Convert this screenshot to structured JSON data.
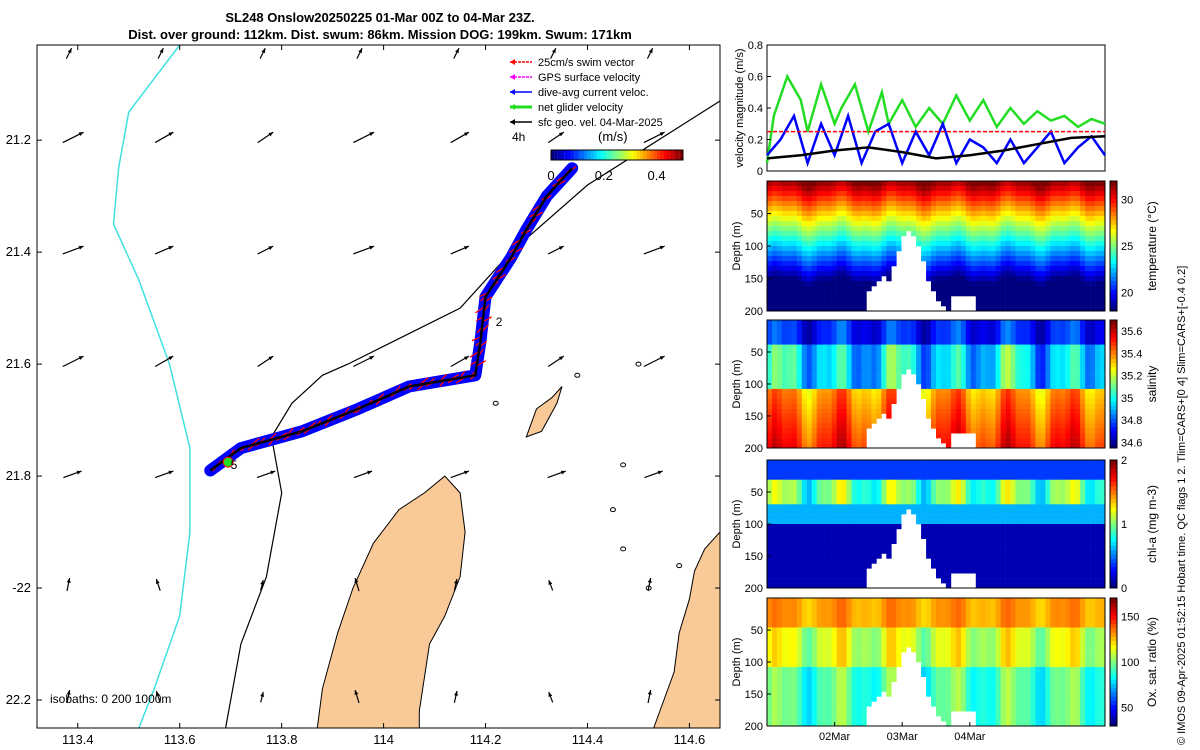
{
  "title_line1": "SL248 Onslow20250225 01-Mar 00Z to 04-Mar 23Z.",
  "title_line2": "Dist. over ground: 112km. Dist. swum: 86km. Mission DOG: 199km. Swum: 171km",
  "side_note": "© IMOS 09-Apr-2025 01:52:15 Hobart time. QC flags 1  2. Tlim=CARS+[0 4] Slim=CARS+[-0.4 0.2]",
  "colors": {
    "land": "#f9c998",
    "isobath0": "#40e0e0",
    "isobath": "#000000",
    "swim": "#ff0000",
    "gps": "#ff00ff",
    "dive": "#0000ff",
    "net": "#22dd22",
    "track": "#000000"
  },
  "chart_data": [
    {
      "type": "map",
      "name": "track-map",
      "xlim": [
        113.32,
        114.66
      ],
      "ylim": [
        -22.25,
        -21.03
      ],
      "x_ticks": [
        113.4,
        113.6,
        113.8,
        114,
        114.2,
        114.4,
        114.6
      ],
      "x_tick_labels": [
        "113.4",
        "113.6",
        "113.8",
        "114",
        "114.2",
        "114.4",
        "114.6"
      ],
      "y_ticks": [
        -21.2,
        -21.4,
        -21.6,
        -21.8,
        -22,
        -22.2
      ],
      "y_tick_labels": [
        "21.2",
        "21.4",
        "21.6",
        "21.8",
        "-22",
        "22.2"
      ],
      "legend": [
        "25cm/s swim vector",
        "GPS surface velocity",
        "dive-avg current veloc.",
        "net glider velocity",
        "sfc geo. vel. 04-Mar-2025"
      ],
      "legend_placement": "top-right",
      "interval_label": "4h",
      "colorbar_label": "(m/s)",
      "colorbar_ticks": [
        "0",
        "0.2",
        "0.4"
      ],
      "colorbar_range": [
        0,
        0.5
      ],
      "isobath_label": "isobaths: 0   200  1000m",
      "annotations": [
        {
          "text": "2",
          "lon": 114.22,
          "lat": -21.525
        },
        {
          "text": "5",
          "lon": 113.7,
          "lat": -21.78
        }
      ],
      "track": [
        [
          114.37,
          -21.25
        ],
        [
          114.32,
          -21.3
        ],
        [
          114.28,
          -21.36
        ],
        [
          114.25,
          -21.41
        ],
        [
          114.2,
          -21.48
        ],
        [
          114.19,
          -21.56
        ],
        [
          114.18,
          -21.62
        ],
        [
          114.05,
          -21.64
        ],
        [
          113.95,
          -21.68
        ],
        [
          113.84,
          -21.72
        ],
        [
          113.72,
          -21.75
        ],
        [
          113.66,
          -21.79
        ]
      ],
      "isobath_200m": [
        [
          114.66,
          -21.13
        ],
        [
          114.4,
          -21.28
        ],
        [
          114.25,
          -21.4
        ],
        [
          114.15,
          -21.5
        ],
        [
          113.93,
          -21.6
        ],
        [
          113.88,
          -21.62
        ],
        [
          113.82,
          -21.67
        ],
        [
          113.78,
          -21.73
        ],
        [
          113.8,
          -21.83
        ],
        [
          113.77,
          -21.98
        ],
        [
          113.72,
          -22.1
        ],
        [
          113.69,
          -22.25
        ]
      ],
      "isobath_0m": [
        [
          113.6,
          -21.03
        ],
        [
          113.5,
          -21.15
        ],
        [
          113.48,
          -21.25
        ],
        [
          113.47,
          -21.35
        ],
        [
          113.52,
          -21.45
        ],
        [
          113.58,
          -21.6
        ],
        [
          113.62,
          -21.75
        ],
        [
          113.62,
          -21.9
        ],
        [
          113.6,
          -22.05
        ],
        [
          113.55,
          -22.18
        ],
        [
          113.52,
          -22.25
        ]
      ],
      "geo_vel_grid": {
        "lons": [
          113.38,
          113.56,
          113.76,
          113.95,
          114.14,
          114.33,
          114.52
        ],
        "lats": [
          -21.05,
          -21.2,
          -21.4,
          -21.6,
          -21.8,
          -22,
          -22.2
        ]
      }
    },
    {
      "type": "line",
      "name": "velocity-magnitude",
      "ylabel": "velocity magnitude (m/s)",
      "xlim": [
        0.5,
        5.5
      ],
      "ylim": [
        0,
        0.8
      ],
      "y_ticks": [
        "0",
        "0.2",
        "0.4",
        "0.6",
        "0.8"
      ],
      "series": [
        {
          "name": "net glider velocity",
          "color": "#22dd22",
          "x": [
            0.5,
            0.6,
            0.8,
            1.0,
            1.1,
            1.3,
            1.5,
            1.6,
            1.8,
            2.0,
            2.2,
            2.3,
            2.5,
            2.7,
            2.9,
            3.1,
            3.3,
            3.5,
            3.7,
            3.9,
            4.1,
            4.3,
            4.5,
            4.7,
            4.9,
            5.1,
            5.3,
            5.5
          ],
          "values": [
            0.05,
            0.35,
            0.6,
            0.45,
            0.25,
            0.55,
            0.3,
            0.4,
            0.55,
            0.25,
            0.5,
            0.3,
            0.45,
            0.28,
            0.4,
            0.3,
            0.48,
            0.32,
            0.45,
            0.28,
            0.4,
            0.3,
            0.38,
            0.32,
            0.35,
            0.28,
            0.33,
            0.3
          ]
        },
        {
          "name": "dive-avg current veloc.",
          "color": "#0000ff",
          "x": [
            0.5,
            0.7,
            0.9,
            1.1,
            1.3,
            1.5,
            1.7,
            1.9,
            2.1,
            2.3,
            2.5,
            2.7,
            2.9,
            3.1,
            3.3,
            3.5,
            3.7,
            3.9,
            4.1,
            4.3,
            4.5,
            4.7,
            4.9,
            5.1,
            5.3,
            5.5
          ],
          "values": [
            0.1,
            0.2,
            0.35,
            0.05,
            0.3,
            0.1,
            0.35,
            0.05,
            0.25,
            0.3,
            0.05,
            0.25,
            0.1,
            0.3,
            0.05,
            0.2,
            0.15,
            0.05,
            0.2,
            0.05,
            0.15,
            0.25,
            0.05,
            0.15,
            0.22,
            0.1
          ]
        },
        {
          "name": "sfc geo. vel.",
          "color": "#000000",
          "x": [
            0.5,
            1.0,
            1.5,
            2.0,
            2.5,
            3.0,
            3.5,
            4.0,
            4.5,
            5.0,
            5.5
          ],
          "values": [
            0.08,
            0.1,
            0.13,
            0.15,
            0.12,
            0.08,
            0.1,
            0.13,
            0.17,
            0.21,
            0.22
          ]
        },
        {
          "name": "25cm/s reference",
          "color": "#ff0000",
          "x": [
            0.5,
            5.5
          ],
          "values": [
            0.25,
            0.25
          ]
        }
      ]
    },
    {
      "type": "heatmap",
      "name": "temperature",
      "ylabel": "Depth (m)",
      "colorbar_label": "temperature (°C)",
      "colorbar_ticks": [
        "30",
        "25",
        "20"
      ],
      "clim": [
        18,
        32
      ],
      "y_ticks": [
        "50",
        "100",
        "150",
        "200"
      ],
      "ylim": [
        0,
        200
      ]
    },
    {
      "type": "heatmap",
      "name": "salinity",
      "ylabel": "Depth (m)",
      "colorbar_label": "salinity",
      "colorbar_ticks": [
        "35.6",
        "35.4",
        "35.2",
        "35",
        "34.8",
        "34.6"
      ],
      "clim": [
        34.55,
        35.7
      ],
      "y_ticks": [
        "50",
        "100",
        "150",
        "200"
      ],
      "ylim": [
        0,
        200
      ]
    },
    {
      "type": "heatmap",
      "name": "chl-a",
      "ylabel": "Depth (m)",
      "colorbar_label": "chl-a (mg m-3)",
      "colorbar_ticks": [
        "2",
        "1",
        "0"
      ],
      "clim": [
        0,
        2
      ],
      "y_ticks": [
        "50",
        "100",
        "150",
        "200"
      ],
      "ylim": [
        0,
        200
      ]
    },
    {
      "type": "heatmap",
      "name": "oxygen",
      "ylabel": "Depth (m)",
      "colorbar_label": "Ox. sat. ratio (%)",
      "colorbar_ticks": [
        "150",
        "100",
        "50"
      ],
      "clim": [
        30,
        170
      ],
      "y_ticks": [
        "50",
        "100",
        "150",
        "200"
      ],
      "ylim": [
        0,
        200
      ],
      "x_ticks": [
        "02Mar",
        "03Mar",
        "04Mar"
      ]
    }
  ]
}
